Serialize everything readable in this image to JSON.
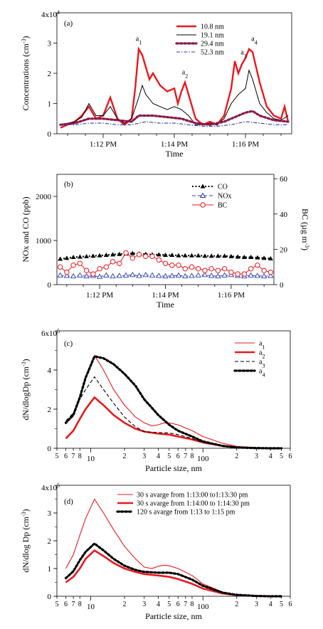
{
  "chart_data": [
    {
      "panel": "(a)",
      "type": "line",
      "xlabel": "Time",
      "ylabel": "Concentrations (cm-3)",
      "y_multiplier_label": "4x10^4",
      "x_ticks": [
        "1:12 PM",
        "1:14 PM",
        "1:16 PM"
      ],
      "x_tick_minutes": [
        12,
        14,
        16
      ],
      "xlim_minutes": [
        10.7,
        17.3
      ],
      "ylim": [
        0,
        4
      ],
      "y_ticks": [
        0,
        1,
        2,
        3
      ],
      "series": [
        {
          "name": "10.8 nm",
          "color": "#e8191f",
          "x": [
            10.8,
            11.0,
            11.2,
            11.4,
            11.6,
            11.8,
            12.0,
            12.2,
            12.4,
            12.6,
            12.8,
            12.9,
            13.0,
            13.1,
            13.2,
            13.3,
            13.4,
            13.6,
            13.8,
            14.0,
            14.1,
            14.2,
            14.3,
            14.4,
            14.6,
            14.8,
            15.0,
            15.2,
            15.4,
            15.6,
            15.7,
            15.8,
            15.9,
            16.0,
            16.1,
            16.2,
            16.3,
            16.4,
            16.6,
            16.8,
            17.0,
            17.1,
            17.2
          ],
          "y": [
            0.2,
            0.3,
            0.4,
            0.6,
            0.9,
            0.5,
            0.6,
            1.2,
            0.5,
            0.3,
            0.5,
            1.5,
            2.8,
            2.6,
            2.2,
            1.8,
            2.0,
            1.6,
            1.4,
            1.5,
            1.0,
            1.4,
            1.7,
            1.3,
            0.5,
            0.3,
            0.4,
            0.3,
            0.6,
            1.5,
            2.4,
            2.0,
            2.3,
            2.5,
            2.8,
            2.7,
            2.2,
            1.7,
            0.9,
            0.6,
            0.5,
            0.9,
            0.4
          ]
        },
        {
          "name": "19.1 nm",
          "color": "#000000",
          "x": [
            10.8,
            11.0,
            11.2,
            11.4,
            11.6,
            11.8,
            12.0,
            12.2,
            12.4,
            12.6,
            12.8,
            13.0,
            13.1,
            13.2,
            13.4,
            13.6,
            13.8,
            14.0,
            14.2,
            14.4,
            14.6,
            14.8,
            15.0,
            15.2,
            15.4,
            15.6,
            15.8,
            16.0,
            16.1,
            16.2,
            16.4,
            16.6,
            16.8,
            17.0,
            17.2
          ],
          "y": [
            0.3,
            0.35,
            0.4,
            0.55,
            1.0,
            0.6,
            0.6,
            0.9,
            0.5,
            0.35,
            0.5,
            1.2,
            1.6,
            1.3,
            1.0,
            0.9,
            0.8,
            0.9,
            0.8,
            0.6,
            0.3,
            0.3,
            0.35,
            0.3,
            0.5,
            1.0,
            1.3,
            1.5,
            2.1,
            1.8,
            1.0,
            0.7,
            0.5,
            0.45,
            0.6
          ]
        },
        {
          "name": "29.4 nm",
          "color": "#8b1a4b",
          "x": [
            10.8,
            11.2,
            11.6,
            12.0,
            12.4,
            12.8,
            13.0,
            13.4,
            13.8,
            14.2,
            14.6,
            15.0,
            15.4,
            15.8,
            16.0,
            16.2,
            16.4,
            16.8,
            17.2
          ],
          "y": [
            0.3,
            0.35,
            0.5,
            0.5,
            0.45,
            0.4,
            0.6,
            0.6,
            0.55,
            0.5,
            0.35,
            0.3,
            0.4,
            0.6,
            0.7,
            0.75,
            0.6,
            0.45,
            0.4
          ]
        },
        {
          "name": "52.3 nm",
          "color": "#2a3fb0",
          "x": [
            10.8,
            11.2,
            11.6,
            12.0,
            12.4,
            12.8,
            13.2,
            13.6,
            14.0,
            14.4,
            14.8,
            15.2,
            15.6,
            16.0,
            16.4,
            16.8,
            17.2
          ],
          "y": [
            0.3,
            0.3,
            0.35,
            0.35,
            0.3,
            0.3,
            0.4,
            0.35,
            0.35,
            0.3,
            0.25,
            0.25,
            0.3,
            0.4,
            0.35,
            0.3,
            0.3
          ]
        }
      ],
      "annotations": [
        {
          "label": "a1",
          "x": 13.0,
          "y": 3.0
        },
        {
          "label": "a2",
          "x": 14.3,
          "y": 1.9
        },
        {
          "label": "a3",
          "x": 15.95,
          "y": 2.55
        },
        {
          "label": "a4",
          "x": 16.25,
          "y": 3.0
        }
      ]
    },
    {
      "panel": "(b)",
      "type": "line",
      "xlabel": "Time",
      "ylabel": "NOx and CO (ppb)",
      "y2label": "BC (µg m-3)",
      "x_ticks": [
        "1:12 PM",
        "1:14 PM",
        "1:16 PM"
      ],
      "x_tick_minutes": [
        12,
        14,
        16
      ],
      "xlim_minutes": [
        10.7,
        17.3
      ],
      "ylim": [
        0,
        2500
      ],
      "y_ticks": [
        0,
        1000,
        2000
      ],
      "y2lim": [
        0,
        62.5
      ],
      "y2_ticks": [
        0,
        20,
        40,
        60
      ],
      "series": [
        {
          "name": "CO",
          "color": "#000000",
          "axis": "left",
          "x": [
            10.8,
            11.0,
            11.2,
            11.4,
            11.6,
            11.8,
            12.0,
            12.2,
            12.4,
            12.6,
            12.8,
            13.0,
            13.2,
            13.4,
            13.6,
            13.8,
            14.0,
            14.2,
            14.4,
            14.6,
            14.8,
            15.0,
            15.2,
            15.4,
            15.6,
            15.8,
            16.0,
            16.2,
            16.4,
            16.6,
            16.8,
            17.0,
            17.2
          ],
          "y": [
            580,
            600,
            620,
            630,
            640,
            650,
            660,
            670,
            680,
            690,
            700,
            710,
            700,
            690,
            680,
            680,
            670,
            670,
            660,
            660,
            660,
            660,
            650,
            650,
            650,
            650,
            640,
            630,
            620,
            620,
            610,
            600,
            590
          ]
        },
        {
          "name": "NOx",
          "color": "#2a3fb0",
          "axis": "left",
          "x": [
            10.8,
            11.0,
            11.2,
            11.4,
            11.6,
            11.8,
            12.0,
            12.2,
            12.4,
            12.6,
            12.8,
            13.0,
            13.2,
            13.4,
            13.6,
            13.8,
            14.0,
            14.2,
            14.4,
            14.6,
            14.8,
            15.0,
            15.2,
            15.4,
            15.6,
            15.8,
            16.0,
            16.2,
            16.4,
            16.6,
            16.8,
            17.0,
            17.2
          ],
          "y": [
            210,
            200,
            190,
            210,
            190,
            200,
            180,
            210,
            190,
            200,
            210,
            220,
            200,
            220,
            210,
            200,
            190,
            200,
            210,
            190,
            200,
            210,
            220,
            200,
            190,
            210,
            220,
            200,
            190,
            210,
            200,
            190,
            200
          ]
        },
        {
          "name": "BC",
          "color": "#e8191f",
          "axis": "right",
          "x": [
            10.8,
            11.0,
            11.2,
            11.4,
            11.6,
            11.8,
            12.0,
            12.2,
            12.4,
            12.6,
            12.8,
            13.0,
            13.2,
            13.4,
            13.6,
            13.8,
            14.0,
            14.2,
            14.4,
            14.6,
            14.8,
            15.0,
            15.2,
            15.4,
            15.6,
            15.8,
            16.0,
            16.2,
            16.4,
            16.6,
            16.8,
            17.0,
            17.2
          ],
          "y": [
            10,
            7,
            11,
            12,
            8,
            6,
            9,
            10,
            13,
            12,
            18,
            15,
            17,
            16,
            16,
            14,
            12,
            11,
            11,
            9,
            10,
            9,
            8,
            9,
            8,
            9,
            7,
            6,
            6,
            9,
            11,
            8,
            7
          ]
        }
      ]
    },
    {
      "panel": "(c)",
      "type": "line",
      "xlabel": "Particle size, nm",
      "ylabel": "dN/dlogDp (cm-3)",
      "y_multiplier_label": "6x10^5",
      "x_scale": "log",
      "xlim": [
        5,
        600
      ],
      "ylim": [
        0,
        6
      ],
      "y_ticks": [
        0,
        2,
        4
      ],
      "x_tick_labels": [
        "5",
        "6",
        "7",
        "8",
        "10",
        "2",
        "3",
        "4",
        "5",
        "6",
        "7",
        "8",
        "100",
        "2",
        "3",
        "4",
        "5",
        "6"
      ],
      "x_tick_values": [
        5,
        6,
        7,
        8,
        10,
        20,
        30,
        40,
        50,
        60,
        70,
        80,
        100,
        200,
        300,
        400,
        500,
        600
      ],
      "series": [
        {
          "name": "a1",
          "color": "#e8191f",
          "style": "thin",
          "x": [
            6,
            7,
            8,
            9,
            10.8,
            13,
            16,
            20,
            25,
            30,
            35,
            40,
            45,
            50,
            60,
            80,
            100,
            150,
            200,
            300,
            400,
            500
          ],
          "y": [
            1.3,
            1.8,
            2.6,
            3.6,
            4.75,
            4.0,
            3.0,
            2.2,
            1.6,
            1.3,
            1.15,
            1.2,
            1.3,
            1.3,
            1.2,
            0.9,
            0.6,
            0.25,
            0.1,
            0.03,
            0.01,
            0.0
          ]
        },
        {
          "name": "a2",
          "color": "#e8191f",
          "style": "thick",
          "x": [
            6,
            7,
            8,
            9,
            10.8,
            13,
            16,
            20,
            25,
            30,
            40,
            50,
            60,
            80,
            100,
            150,
            200,
            300,
            400,
            500
          ],
          "y": [
            0.5,
            0.9,
            1.5,
            2.0,
            2.6,
            2.2,
            1.7,
            1.3,
            1.0,
            0.85,
            0.75,
            0.7,
            0.6,
            0.45,
            0.3,
            0.12,
            0.05,
            0.01,
            0.0,
            0.0
          ]
        },
        {
          "name": "a3",
          "color": "#000000",
          "style": "dashed",
          "x": [
            6,
            7,
            8,
            9,
            10.8,
            13,
            16,
            20,
            25,
            30,
            40,
            50,
            60,
            80,
            100,
            150,
            200,
            300,
            400,
            500
          ],
          "y": [
            1.4,
            1.8,
            2.5,
            3.0,
            3.65,
            3.0,
            2.3,
            1.6,
            1.1,
            0.85,
            0.8,
            0.78,
            0.7,
            0.5,
            0.3,
            0.1,
            0.04,
            0.01,
            0.0,
            0.0
          ]
        },
        {
          "name": "a4",
          "color": "#000000",
          "style": "dotted",
          "x": [
            6,
            7,
            8,
            9,
            10.8,
            13,
            16,
            20,
            25,
            30,
            40,
            50,
            60,
            80,
            100,
            150,
            200,
            300,
            400,
            500
          ],
          "y": [
            1.3,
            1.7,
            2.6,
            3.6,
            4.7,
            4.6,
            4.3,
            3.8,
            3.2,
            2.5,
            1.7,
            1.2,
            0.9,
            0.6,
            0.35,
            0.12,
            0.04,
            0.01,
            0.0,
            0.0
          ]
        }
      ]
    },
    {
      "panel": "(d)",
      "type": "line",
      "xlabel": "Particle size, nm",
      "ylabel": "dN/dlog Dp (cm-3)",
      "y_multiplier_label": "4x10^5",
      "x_scale": "log",
      "xlim": [
        5,
        600
      ],
      "ylim": [
        0,
        4
      ],
      "y_ticks": [
        0,
        1,
        2,
        3
      ],
      "x_tick_labels": [
        "5",
        "6",
        "7",
        "8",
        "10",
        "2",
        "3",
        "4",
        "5",
        "6",
        "7",
        "8",
        "100",
        "2",
        "3",
        "4",
        "5",
        "6"
      ],
      "x_tick_values": [
        5,
        6,
        7,
        8,
        10,
        20,
        30,
        40,
        50,
        60,
        70,
        80,
        100,
        200,
        300,
        400,
        500,
        600
      ],
      "series": [
        {
          "name": "30 s avarge from 1:13:00 to1:13:30 pm",
          "color": "#e8191f",
          "style": "thin",
          "x": [
            6,
            7,
            8,
            9,
            10.8,
            13,
            16,
            20,
            25,
            30,
            35,
            40,
            45,
            50,
            60,
            80,
            100,
            150,
            200,
            300,
            400,
            500
          ],
          "y": [
            1.0,
            1.5,
            2.2,
            2.8,
            3.5,
            3.0,
            2.4,
            1.8,
            1.35,
            1.05,
            1.0,
            1.08,
            1.12,
            1.1,
            1.0,
            0.75,
            0.45,
            0.15,
            0.05,
            0.01,
            0.0,
            0.0
          ]
        },
        {
          "name": "30 s avarge from 1:14:00 to 1:14:30 pm",
          "color": "#e8191f",
          "style": "thick",
          "x": [
            6,
            7,
            8,
            9,
            10.8,
            13,
            16,
            20,
            25,
            30,
            40,
            50,
            60,
            80,
            100,
            150,
            200,
            300,
            400,
            500
          ],
          "y": [
            0.5,
            0.7,
            1.0,
            1.35,
            1.65,
            1.45,
            1.2,
            1.0,
            0.88,
            0.8,
            0.75,
            0.7,
            0.62,
            0.45,
            0.28,
            0.1,
            0.04,
            0.01,
            0.0,
            0.0
          ]
        },
        {
          "name": "120 s avarge from 1:13 to 1:15 pm",
          "color": "#000000",
          "style": "dotted",
          "x": [
            6,
            7,
            8,
            9,
            10.8,
            13,
            16,
            20,
            25,
            30,
            40,
            50,
            60,
            80,
            100,
            150,
            200,
            300,
            400,
            500
          ],
          "y": [
            0.65,
            0.9,
            1.3,
            1.6,
            1.9,
            1.65,
            1.35,
            1.1,
            0.95,
            0.88,
            0.85,
            0.85,
            0.8,
            0.6,
            0.38,
            0.13,
            0.05,
            0.01,
            0.0,
            0.0
          ]
        }
      ]
    }
  ]
}
